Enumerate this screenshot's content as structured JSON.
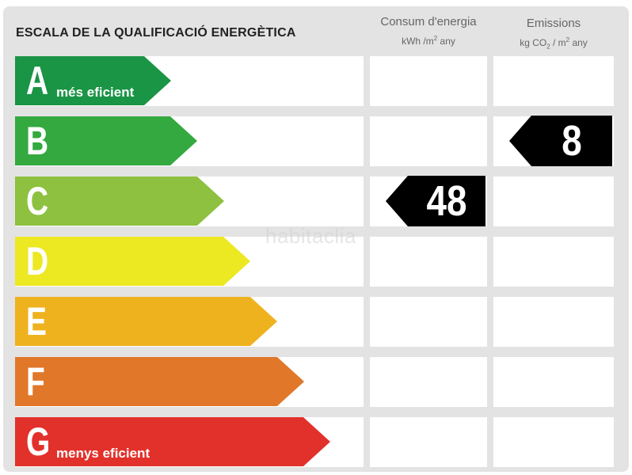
{
  "title": "ESCALA DE LA QUALIFICACIÓ ENERGÈTICA",
  "columns": {
    "consumption": {
      "line1": "Consum d'energia",
      "unit_a": "kWh /m",
      "unit_sup": "2",
      "unit_b": " any"
    },
    "emissions": {
      "line1": "Emissions",
      "unit_a": "kg CO",
      "unit_sub": "2",
      "unit_c": " / m",
      "unit_sup": "2",
      "unit_d": "  any"
    }
  },
  "ratings": [
    {
      "letter": "A",
      "label": "més eficient",
      "color": "#1a9445"
    },
    {
      "letter": "B",
      "label": "",
      "color": "#33a93f"
    },
    {
      "letter": "C",
      "label": "",
      "color": "#8dc13f"
    },
    {
      "letter": "D",
      "label": "",
      "color": "#ece822"
    },
    {
      "letter": "E",
      "label": "",
      "color": "#efb21f"
    },
    {
      "letter": "F",
      "label": "",
      "color": "#e17729"
    },
    {
      "letter": "G",
      "label": "menys eficient",
      "color": "#e2312b"
    }
  ],
  "consumption_rating": {
    "letter": "C",
    "value": "48"
  },
  "emissions_rating": {
    "letter": "B",
    "value": "8"
  },
  "watermark": "habitaclia"
}
